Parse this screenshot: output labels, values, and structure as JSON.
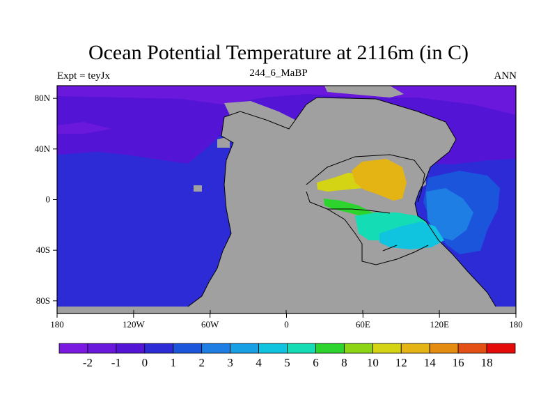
{
  "title": "Ocean Potential Temperature at 2116m (in C)",
  "left_string": "Expt = teyJx",
  "center_string": "244_6_MaBP",
  "right_string": "ANN",
  "map": {
    "lon_ticks": [
      "180",
      "120W",
      "60W",
      "0",
      "60E",
      "120E",
      "180"
    ],
    "lat_ticks": [
      "80N",
      "40N",
      "0",
      "40S",
      "80S"
    ],
    "land_color": "#a0a0a0",
    "coast_color": "#000000"
  },
  "colorbar": {
    "colors": [
      "#7a19e0",
      "#6a18dc",
      "#5414d6",
      "#2d2bd6",
      "#1a55dc",
      "#1f7ee4",
      "#18a0e4",
      "#10c4e0",
      "#14dcb4",
      "#2dd42d",
      "#8cd414",
      "#d4d414",
      "#e4b414",
      "#e48c10",
      "#e45014",
      "#e40a0a"
    ],
    "labels": [
      "-2",
      "-1",
      "0",
      "1",
      "2",
      "3",
      "4",
      "5",
      "6",
      "8",
      "10",
      "12",
      "14",
      "16",
      "18"
    ]
  }
}
